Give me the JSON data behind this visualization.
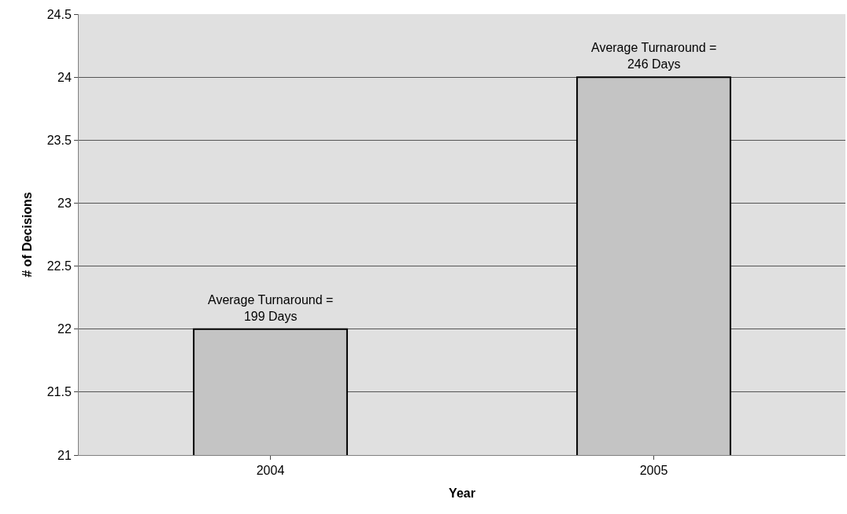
{
  "chart_data": {
    "type": "bar",
    "xlabel": "Year",
    "ylabel": "# of Decisions",
    "categories": [
      "2004",
      "2005"
    ],
    "values": [
      22,
      24
    ],
    "color": "#c4c4c4",
    "ylim": [
      21,
      24.5
    ],
    "yticks": [
      21,
      21.5,
      22,
      22.5,
      23,
      23.5,
      24,
      24.5
    ],
    "grid": "y",
    "annotations": [
      {
        "text": "Average Turnaround =\n199 Days",
        "x": "2004",
        "y": 22
      },
      {
        "text": "Average Turnaround =\n246 Days",
        "x": "2005",
        "y": 24
      }
    ]
  }
}
